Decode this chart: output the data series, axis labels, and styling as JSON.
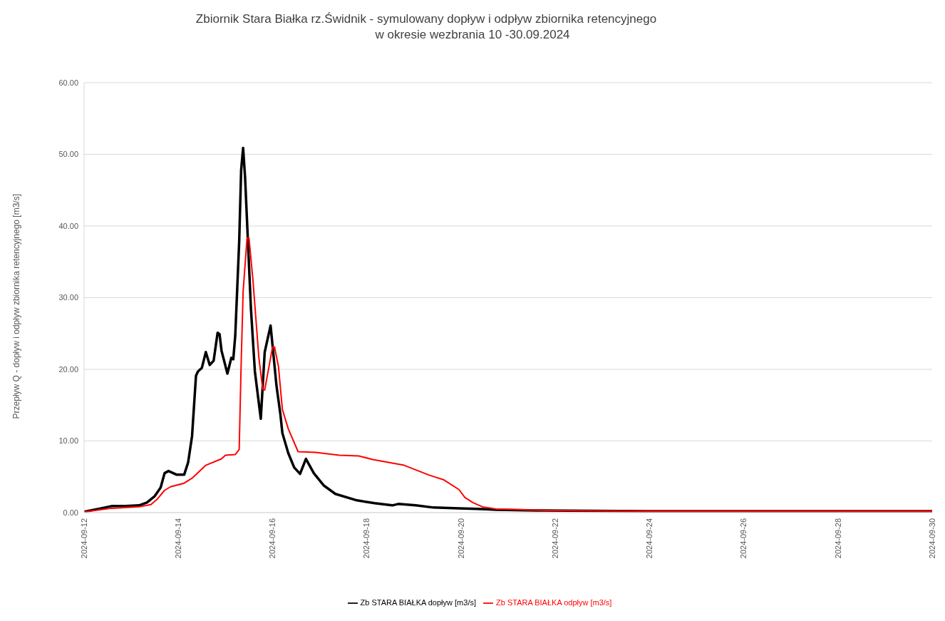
{
  "chart_data": {
    "type": "line",
    "title": "Zbiornik Stara Białka rz.Świdnik - symulowany dopływ i odpływ zbiornika retencyjnego\nw okresie wezbrania 10 -30.09.2024",
    "ylabel": "Przepływ Q - dopływ i odpływ zbiornika retencyjnego [m3/s]",
    "xlim": [
      "2024-09-12",
      "2024-09-30"
    ],
    "xticks": [
      "2024-09-12",
      "2024-09-14",
      "2024-09-16",
      "2024-09-18",
      "2024-09-20",
      "2024-09-22",
      "2024-09-24",
      "2024-09-26",
      "2024-09-28",
      "2024-09-30"
    ],
    "ylim": [
      0,
      60
    ],
    "yticks": [
      {
        "value": 0,
        "label": "0.00"
      },
      {
        "value": 10,
        "label": "10.00"
      },
      {
        "value": 20,
        "label": "20.00"
      },
      {
        "value": 30,
        "label": "30.00"
      },
      {
        "value": 40,
        "label": "40.00"
      },
      {
        "value": 50,
        "label": "50.00"
      },
      {
        "value": 60,
        "label": "60.00"
      }
    ],
    "grid": "y",
    "legend": "bottom",
    "marker": "none",
    "line_style": "solid",
    "series": [
      {
        "name": "Zb STARA BIAŁKA dopływ [m3/s]",
        "color": "#000000",
        "x": [
          "2024-09-12T00:00",
          "2024-09-12T07:00",
          "2024-09-12T14:00",
          "2024-09-12T21:00",
          "2024-09-13T04:00",
          "2024-09-13T08:00",
          "2024-09-13T12:00",
          "2024-09-13T15:00",
          "2024-09-13T17:00",
          "2024-09-13T19:00",
          "2024-09-13T23:00",
          "2024-09-14T03:00",
          "2024-09-14T05:00",
          "2024-09-14T07:00",
          "2024-09-14T09:00",
          "2024-09-14T10:00",
          "2024-09-14T12:00",
          "2024-09-14T14:00",
          "2024-09-14T16:00",
          "2024-09-14T18:00",
          "2024-09-14T20:00",
          "2024-09-14T21:00",
          "2024-09-14T22:00",
          "2024-09-15T01:00",
          "2024-09-15T03:00",
          "2024-09-15T04:00",
          "2024-09-15T05:00",
          "2024-09-15T07:00",
          "2024-09-15T08:00",
          "2024-09-15T09:00",
          "2024-09-15T10:00",
          "2024-09-15T13:00",
          "2024-09-15T15:00",
          "2024-09-15T18:00",
          "2024-09-15T20:00",
          "2024-09-15T23:00",
          "2024-09-16T02:00",
          "2024-09-16T04:00",
          "2024-09-16T05:00",
          "2024-09-16T08:00",
          "2024-09-16T11:00",
          "2024-09-16T14:00",
          "2024-09-16T17:00",
          "2024-09-16T21:00",
          "2024-09-17T02:00",
          "2024-09-17T08:00",
          "2024-09-17T19:00",
          "2024-09-18T04:00",
          "2024-09-18T13:00",
          "2024-09-18T16:00",
          "2024-09-19T01:00",
          "2024-09-19T10:00",
          "2024-09-19T23:00",
          "2024-09-20T11:00",
          "2024-09-20T18:00",
          "2024-09-21T15:00",
          "2024-09-23T22:00",
          "2024-09-30T00:00"
        ],
        "values": [
          0.1,
          0.5,
          0.9,
          0.9,
          1.0,
          1.4,
          2.3,
          3.5,
          5.5,
          5.8,
          5.3,
          5.3,
          7.0,
          10.7,
          19.1,
          19.7,
          20.2,
          22.4,
          20.6,
          21.2,
          25.1,
          24.9,
          22.6,
          19.4,
          21.6,
          21.4,
          24.7,
          37.8,
          47.8,
          50.9,
          46.8,
          28.4,
          19.7,
          13.1,
          22.4,
          26.1,
          17.7,
          13.7,
          11.1,
          8.3,
          6.3,
          5.4,
          7.5,
          5.5,
          3.8,
          2.6,
          1.7,
          1.3,
          1.0,
          1.2,
          1.0,
          0.7,
          0.6,
          0.5,
          0.4,
          0.3,
          0.2,
          0.2
        ]
      },
      {
        "name": "Zb STARA BIAŁKA odpływ [m3/s]",
        "color": "#ff0000",
        "x": [
          "2024-09-12T00:00",
          "2024-09-12T14:00",
          "2024-09-13T04:00",
          "2024-09-13T10:00",
          "2024-09-13T13:00",
          "2024-09-13T17:00",
          "2024-09-13T20:00",
          "2024-09-14T03:00",
          "2024-09-14T07:00",
          "2024-09-14T14:00",
          "2024-09-14T22:00",
          "2024-09-15T00:00",
          "2024-09-15T05:00",
          "2024-09-15T07:00",
          "2024-09-15T08:00",
          "2024-09-15T09:00",
          "2024-09-15T11:00",
          "2024-09-15T12:00",
          "2024-09-15T14:00",
          "2024-09-15T17:00",
          "2024-09-15T19:00",
          "2024-09-15T20:00",
          "2024-09-16T00:00",
          "2024-09-16T01:00",
          "2024-09-16T03:00",
          "2024-09-16T05:00",
          "2024-09-16T08:00",
          "2024-09-16T13:00",
          "2024-09-16T22:00",
          "2024-09-17T10:00",
          "2024-09-17T20:00",
          "2024-09-18T03:00",
          "2024-09-18T19:00",
          "2024-09-19T08:00",
          "2024-09-19T15:00",
          "2024-09-19T23:00",
          "2024-09-20T02:00",
          "2024-09-20T06:00",
          "2024-09-20T11:00",
          "2024-09-20T18:00",
          "2024-09-21T21:00",
          "2024-09-23T22:00",
          "2024-09-30T00:00"
        ],
        "values": [
          0.1,
          0.6,
          0.8,
          1.1,
          1.8,
          3.1,
          3.6,
          4.1,
          4.8,
          6.6,
          7.5,
          8.0,
          8.1,
          8.8,
          20.7,
          30.8,
          38.3,
          38.3,
          32.5,
          21.7,
          17.2,
          17.1,
          23.1,
          23.1,
          20.4,
          14.4,
          11.7,
          8.5,
          8.4,
          8.0,
          7.9,
          7.4,
          6.6,
          5.2,
          4.6,
          3.2,
          2.1,
          1.4,
          0.8,
          0.5,
          0.3,
          0.2,
          0.2
        ]
      }
    ]
  }
}
